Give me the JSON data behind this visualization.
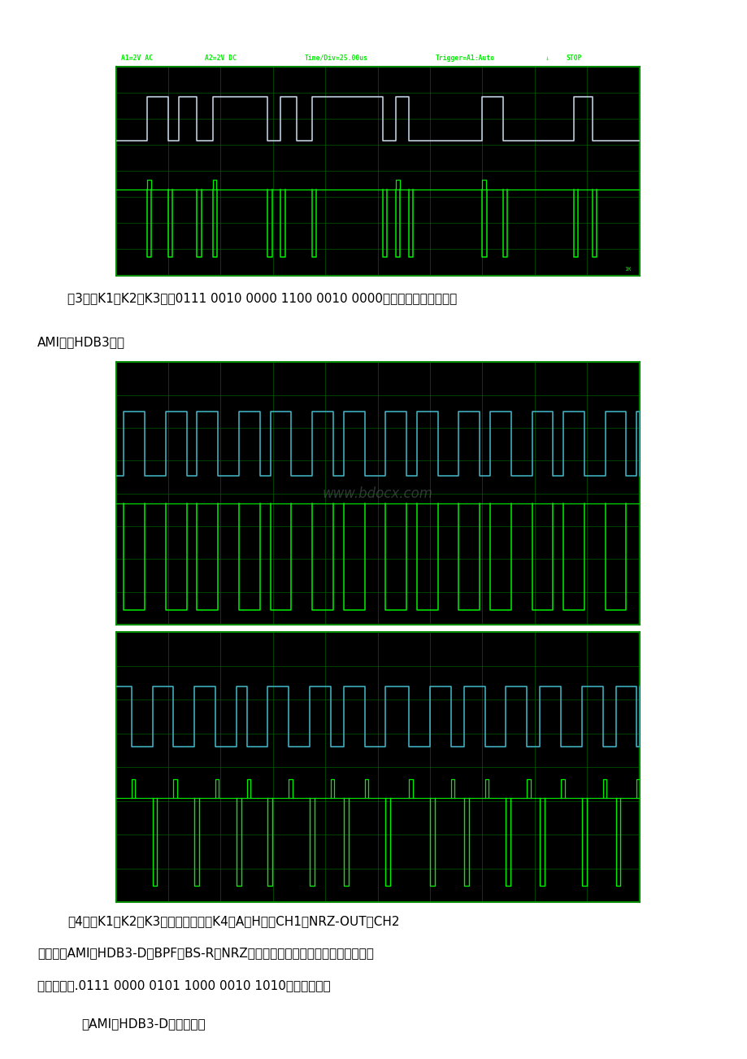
{
  "page_bg": "#f0f0f0",
  "osc_bg": "#000000",
  "grid_color": "#004400",
  "grid_color2": "#006600",
  "green_color": "#00ee00",
  "cyan_color": "#44bbcc",
  "white_color": "#ccddee",
  "header_text_color": "#00ee00",
  "text_color": "#000000",
  "osc_border_color": "#008800",
  "watermark": "www.bdocx.com",
  "watermark_color": "#667777",
  "para3_line1": "（3）将K1、K2、K3置于0111 0010 0000 1100 0010 0000态，观察并记录对应的",
  "para3_line2": "AMI码和HDB3码。",
  "para4_line1": "（4）将K1、K2、K3置于任意状态，K4置A或H端，CH1接NRZ-OUT，CH2",
  "para4_line2": "分别接（AMI）HDB3-D、BPF、BS-R和NRZ，观察这些信号波形。观察时应注意：",
  "para4_line3": "当输入码为.0111 0000 0101 1000 0010 1010时输出波形：",
  "para4_line4": "（AMI）HDB3-D码的波形："
}
